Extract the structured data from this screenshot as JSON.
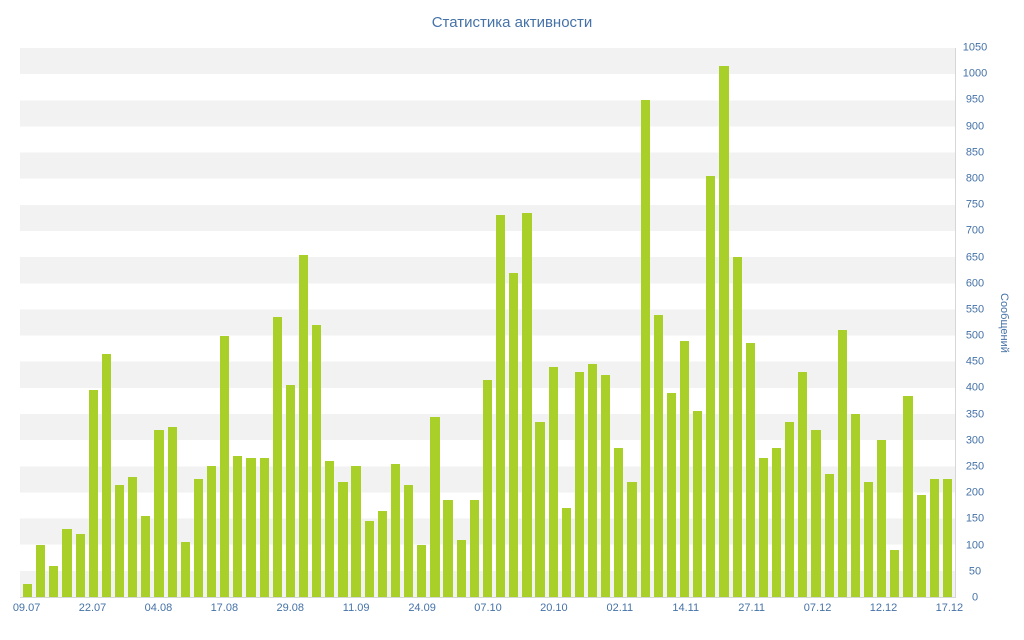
{
  "chart_data": {
    "type": "bar",
    "title": "Статистика активности",
    "ylabel": "Сообщений",
    "xlabel": "",
    "ylim": [
      0,
      1050
    ],
    "yticks": [
      0,
      50,
      100,
      150,
      200,
      250,
      300,
      350,
      400,
      450,
      500,
      550,
      600,
      650,
      700,
      750,
      800,
      850,
      900,
      950,
      1000,
      1050
    ],
    "x_labels": [
      "09.07",
      "22.07",
      "04.08",
      "17.08",
      "29.08",
      "11.09",
      "24.09",
      "07.10",
      "20.10",
      "02.11",
      "14.11",
      "27.11",
      "07.12",
      "12.12",
      "17.12"
    ],
    "x_label_every": 5,
    "values": [
      25,
      100,
      60,
      130,
      120,
      395,
      465,
      215,
      230,
      155,
      320,
      325,
      105,
      225,
      250,
      500,
      270,
      265,
      265,
      535,
      405,
      655,
      520,
      260,
      220,
      250,
      145,
      165,
      255,
      215,
      100,
      345,
      185,
      110,
      185,
      415,
      730,
      620,
      735,
      335,
      440,
      170,
      430,
      445,
      425,
      285,
      220,
      950,
      540,
      390,
      490,
      355,
      805,
      1015,
      650,
      485,
      265,
      285,
      335,
      430,
      320,
      235,
      510,
      350,
      220,
      300,
      90,
      385,
      195,
      225,
      225
    ],
    "bar_color": "#a9d028",
    "band_color": "#f2f2f2",
    "axis_text_color": "#4572a7",
    "grid": "horizontal-bands",
    "legend": "none"
  }
}
